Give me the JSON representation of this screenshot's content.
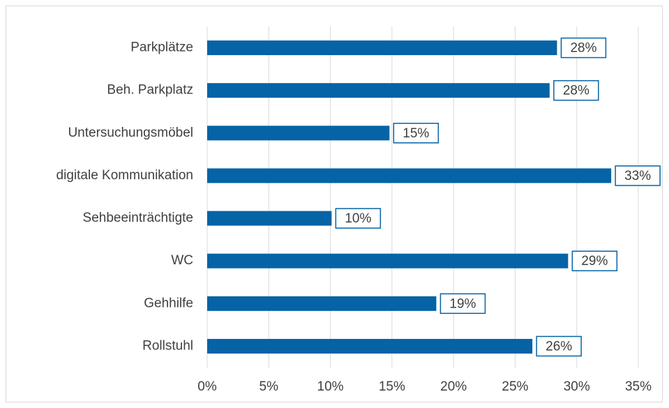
{
  "chart_data": {
    "type": "bar",
    "orientation": "horizontal",
    "categories": [
      "Parkplätze",
      "Beh. Parkplatz",
      "Untersuchungsmöbel",
      "digitale Kommunikation",
      "Sehbeeinträchtigte",
      "WC",
      "Gehhilfe",
      "Rollstuhl"
    ],
    "values": [
      28.4,
      27.8,
      14.8,
      32.8,
      10.1,
      29.3,
      18.6,
      26.4
    ],
    "value_labels": [
      "28%",
      "28%",
      "15%",
      "33%",
      "10%",
      "29%",
      "19%",
      "26%"
    ],
    "color": "#0563a6",
    "xlim": [
      0,
      35
    ],
    "xticks": [
      {
        "value": 0,
        "label": "0%"
      },
      {
        "value": 5,
        "label": "5%"
      },
      {
        "value": 10,
        "label": "10%"
      },
      {
        "value": 15,
        "label": "15%"
      },
      {
        "value": 20,
        "label": "20%"
      },
      {
        "value": 25,
        "label": "25%"
      },
      {
        "value": 30,
        "label": "30%"
      },
      {
        "value": 35,
        "label": "35%"
      }
    ],
    "grid": true
  }
}
